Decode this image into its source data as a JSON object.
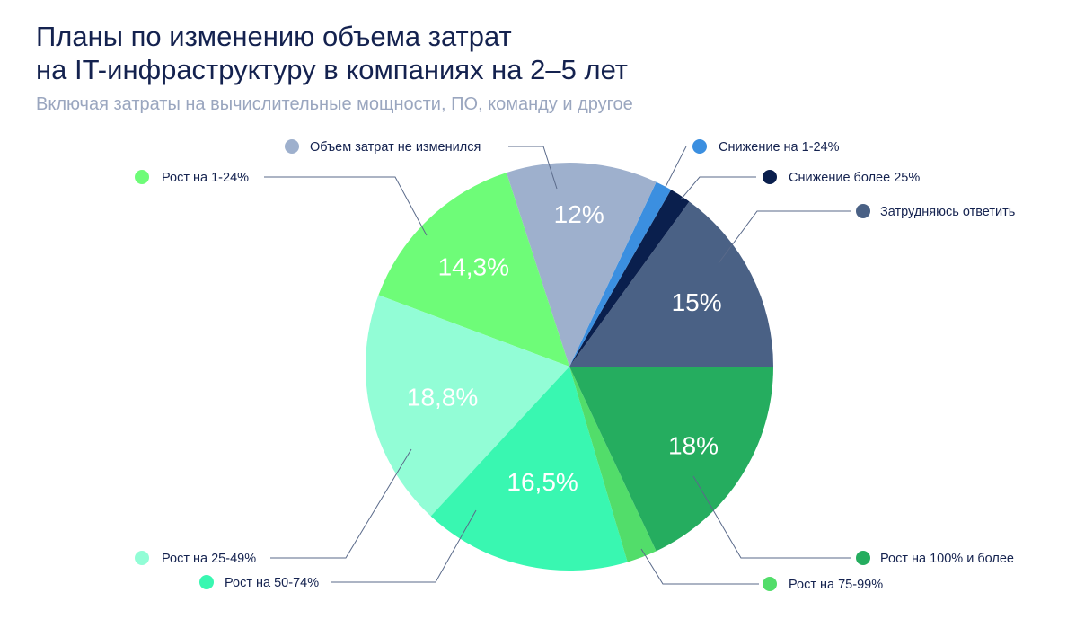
{
  "header": {
    "title_line1": "Планы по изменению объема затрат",
    "title_line2": "на IT-инфраструктуру в компаниях на 2–5 лет",
    "subtitle": "Включая затраты на вычислительные мощности, ПО, команду и другое"
  },
  "chart_data": {
    "type": "pie",
    "title": "Планы по изменению объема затрат на IT-инфраструктуру в компаниях на 2–5 лет",
    "subtitle": "Включая затраты на вычислительные мощности, ПО, команду и другое",
    "start": "3 o'clock",
    "direction": "counter-clockwise",
    "slices": [
      {
        "name": "Затрудняюсь ответить",
        "value": 15,
        "label": "15%",
        "color": "#4a6185"
      },
      {
        "name": "Снижение более 25%",
        "value": 1.7,
        "label": "",
        "color": "#0a1f4d"
      },
      {
        "name": "Снижение на 1-24%",
        "value": 1.3,
        "label": "",
        "color": "#3b8fe0"
      },
      {
        "name": "Объем затрат не изменился",
        "value": 12,
        "label": "12%",
        "color": "#9eb0cd"
      },
      {
        "name": "Рост на 1-24%",
        "value": 14.3,
        "label": "14,3%",
        "color": "#6efc78"
      },
      {
        "name": "Рост на 25-49%",
        "value": 18.8,
        "label": "18,8%",
        "color": "#92fdd6"
      },
      {
        "name": "Рост на 50-74%",
        "value": 16.5,
        "label": "16,5%",
        "color": "#39f7b1"
      },
      {
        "name": "Рост на 75-99%",
        "value": 2.4,
        "label": "",
        "color": "#52dd6a"
      },
      {
        "name": "Рост на 100% и более",
        "value": 18,
        "label": "18%",
        "color": "#25ad5f"
      }
    ],
    "legend": "around the pie, with leader lines"
  }
}
